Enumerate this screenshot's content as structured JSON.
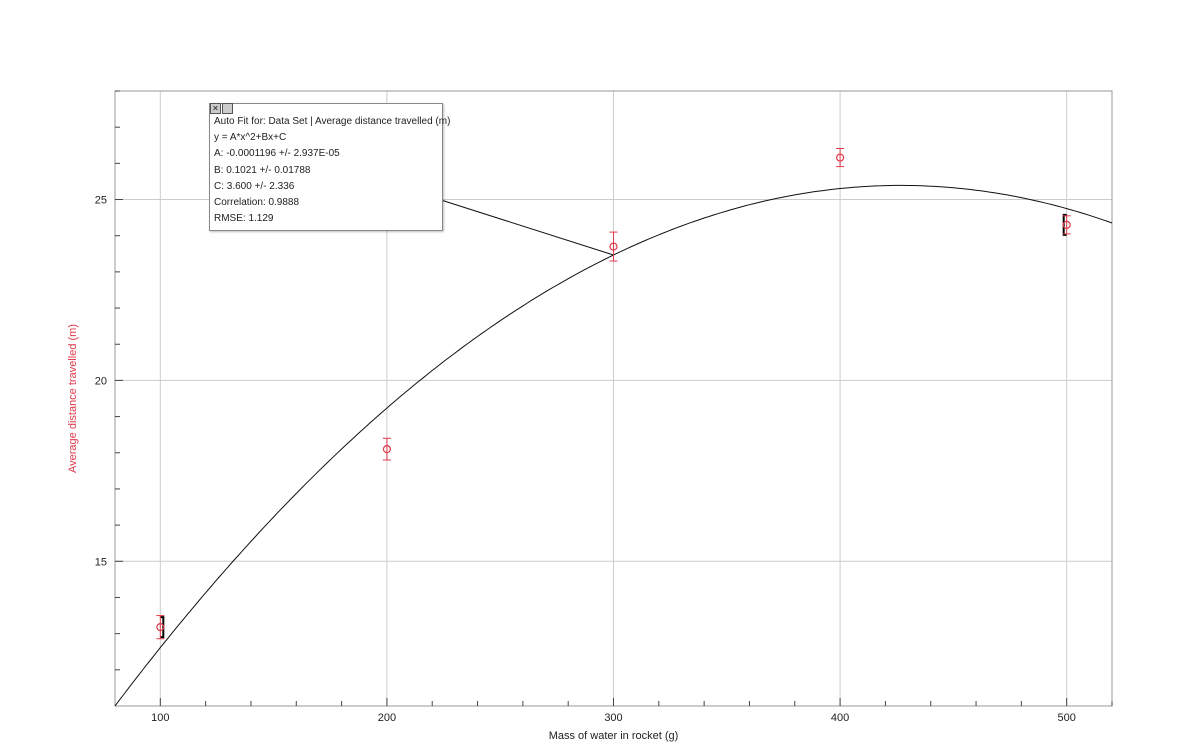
{
  "chart_data": {
    "type": "scatter",
    "xlabel": "Mass of water in rocket (g)",
    "ylabel": "Average distance travelled (m)",
    "xlim": [
      80,
      520
    ],
    "ylim": [
      11,
      28
    ],
    "xticks": [
      100,
      200,
      300,
      400,
      500
    ],
    "yticks": [
      15,
      20,
      25
    ],
    "grid": true,
    "series": [
      {
        "x": [
          100,
          200,
          300,
          400,
          500
        ],
        "y": [
          13.18,
          18.1,
          23.7,
          26.16,
          24.3
        ],
        "yerr": [
          0.32,
          0.3,
          0.4,
          0.25,
          0.25
        ],
        "color": "#e0394a"
      }
    ],
    "fit": {
      "type": "quadratic",
      "A": -0.0001196,
      "B": 0.1021,
      "C": 3.6
    },
    "selection_range": [
      100,
      500
    ],
    "fit_box": {
      "title": "Auto Fit for: Data Set | Average distance travelled (m)",
      "equation": "y = A*x^2+Bx+C",
      "A": "A: -0.0001196 +/- 2.937E-05",
      "B": "B: 0.1021 +/- 0.01788",
      "C": "C: 3.600 +/- 2.336",
      "correlation": "Correlation: 0.9888",
      "rmse": "RMSE: 1.129",
      "close_icon": "close-icon",
      "options_icon": "options-icon"
    }
  }
}
